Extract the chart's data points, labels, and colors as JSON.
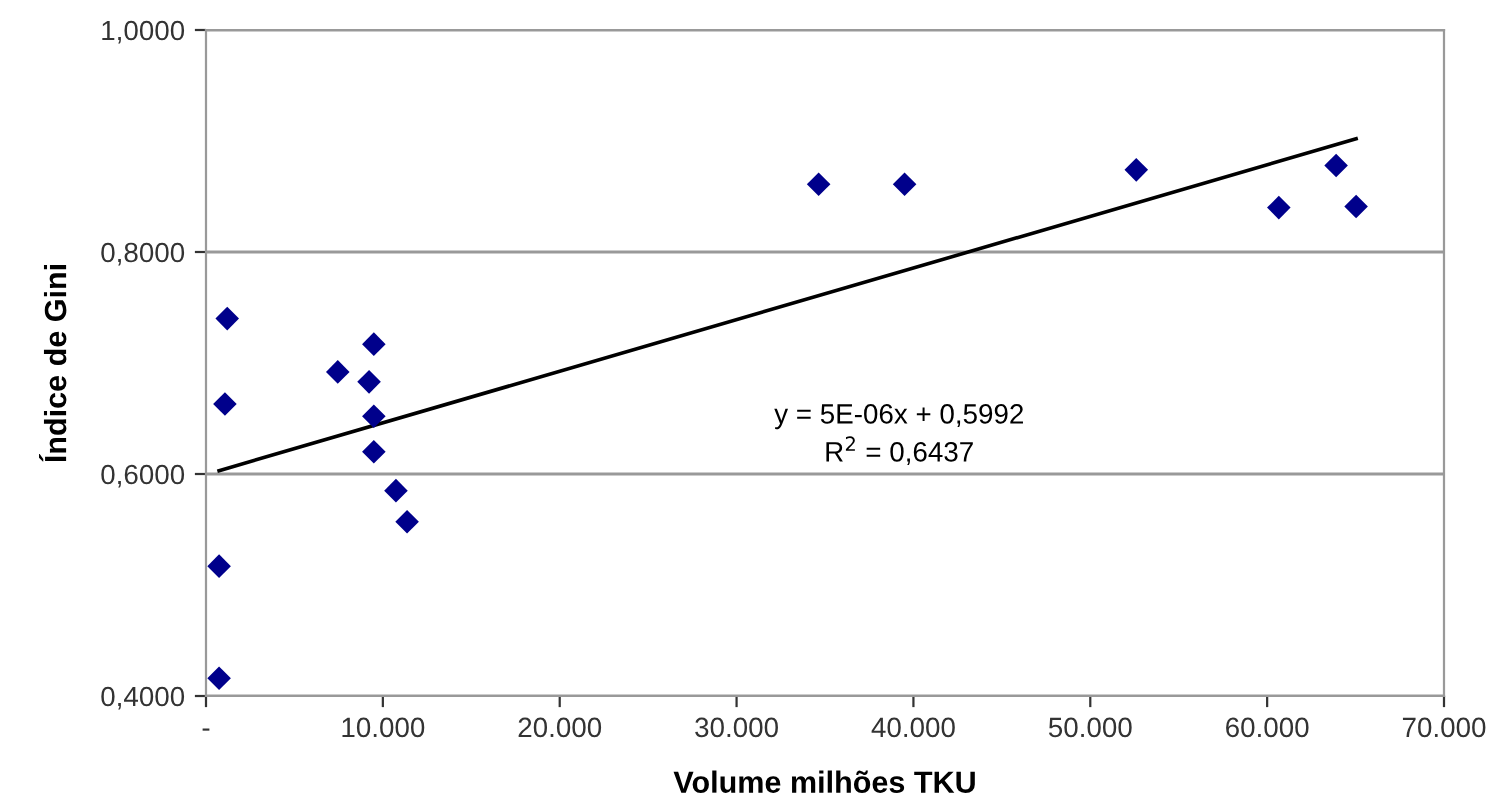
{
  "chart_data": {
    "type": "scatter",
    "xlabel": "Volume milhões TKU",
    "ylabel": "Índice de Gini",
    "series": [
      {
        "color": "#00008b",
        "marker": "diamond",
        "x": [
          1200,
          1070,
          740,
          740,
          7450,
          9490,
          9220,
          9490,
          9490,
          10740,
          11370,
          34640,
          39500,
          52600,
          60660,
          63900,
          65030
        ],
        "values": [
          0.74,
          0.663,
          0.517,
          0.416,
          0.692,
          0.717,
          0.683,
          0.652,
          0.62,
          0.585,
          0.557,
          0.861,
          0.861,
          0.874,
          0.84,
          0.878,
          0.841
        ]
      },
      {
        "type": "line",
        "color": "#000000",
        "marker": "none",
        "x": [
          740,
          65030
        ],
        "values": [
          0.603,
          0.902
        ]
      }
    ],
    "annotations": [
      "y = 5E-06x + 0,5992",
      "R$^{2}$ = 0,6437"
    ],
    "xlim": [
      0,
      70000
    ],
    "ylim": [
      0.4,
      1.0
    ],
    "xticks": [
      {
        "value": 0,
        "label": "-"
      },
      {
        "value": 10000,
        "label": "10.000"
      },
      {
        "value": 20000,
        "label": "20.000"
      },
      {
        "value": 30000,
        "label": "30.000"
      },
      {
        "value": 40000,
        "label": "40.000"
      },
      {
        "value": 50000,
        "label": "50.000"
      },
      {
        "value": 60000,
        "label": "60.000"
      },
      {
        "value": 70000,
        "label": "70.000"
      }
    ],
    "yticks": [
      {
        "value": 0.4,
        "label": "0,4000"
      },
      {
        "value": 0.6,
        "label": "0,6000"
      },
      {
        "value": 0.8,
        "label": "0,8000"
      },
      {
        "value": 1.0,
        "label": "1,0000"
      }
    ],
    "grid": "y"
  }
}
